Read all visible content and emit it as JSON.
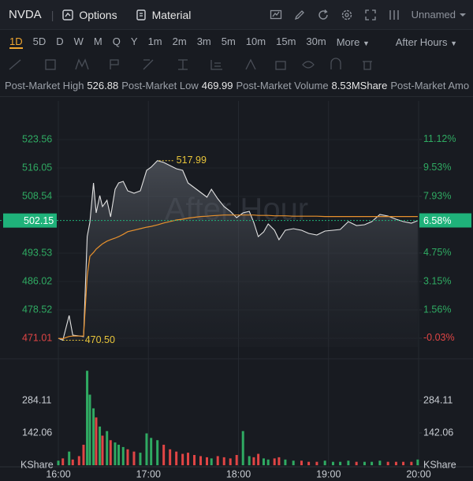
{
  "header": {
    "symbol": "NVDA",
    "tabs": [
      "Options",
      "Material"
    ],
    "layout_name": "Unnamed"
  },
  "timeframes": {
    "items": [
      "1D",
      "5D",
      "D",
      "W",
      "M",
      "Q",
      "Y",
      "1m",
      "2m",
      "3m",
      "5m",
      "10m",
      "15m",
      "30m"
    ],
    "selected": 0,
    "more": "More",
    "session": "After Hours"
  },
  "stats": [
    {
      "label": "Post-Market High",
      "value": "526.88"
    },
    {
      "label": "Post-Market Low",
      "value": "469.99"
    },
    {
      "label": "Post-Market Volume",
      "value": "8.53MShare"
    },
    {
      "label": "Post-Market Amo"
    }
  ],
  "chart_data": {
    "type": "line",
    "watermark": "After Hour",
    "x": [
      16.0,
      16.05,
      16.12,
      16.16,
      16.23,
      16.28,
      16.32,
      16.35,
      16.39,
      16.42,
      16.46,
      16.49,
      16.54,
      16.58,
      16.63,
      16.67,
      16.72,
      16.77,
      16.84,
      16.91,
      16.98,
      17.03,
      17.1,
      17.17,
      17.24,
      17.31,
      17.38,
      17.44,
      17.51,
      17.58,
      17.65,
      17.7,
      17.77,
      17.84,
      17.91,
      17.98,
      18.05,
      18.12,
      18.17,
      18.22,
      18.28,
      18.33,
      18.4,
      18.45,
      18.52,
      18.61,
      18.7,
      18.78,
      18.87,
      18.96,
      19.05,
      19.13,
      19.22,
      19.31,
      19.4,
      19.48,
      19.57,
      19.66,
      19.75,
      19.83,
      19.92,
      19.99
    ],
    "xlim": [
      16,
      20
    ],
    "xticks": [
      {
        "value": 16,
        "label": "16:00"
      },
      {
        "value": 17,
        "label": "17:00"
      },
      {
        "value": 18,
        "label": "18:00"
      },
      {
        "value": 19,
        "label": "19:00"
      },
      {
        "value": 20,
        "label": "20:00"
      }
    ],
    "ylim": [
      468.72,
      529.19
    ],
    "yticks": [
      523.56,
      516.05,
      508.54,
      493.53,
      486.02,
      478.52,
      471.01
    ],
    "y2lim": [
      -0.52,
      12.31
    ],
    "y2ticks": [
      {
        "value": 11.12,
        "label": "11.12%"
      },
      {
        "value": 9.53,
        "label": "9.53%"
      },
      {
        "value": 7.93,
        "label": "7.93%"
      },
      {
        "value": 4.75,
        "label": "4.75%"
      },
      {
        "value": 3.15,
        "label": "3.15%"
      },
      {
        "value": 1.56,
        "label": "1.56%"
      },
      {
        "value": -0.03,
        "label": "-0.03%"
      }
    ],
    "series": [
      {
        "color": "#e2e2e2",
        "values": [
          471.01,
          470.5,
          477.05,
          471.84,
          471.63,
          471.43,
          497.91,
          501.66,
          512.09,
          504.16,
          508.75,
          505.83,
          507.5,
          503.12,
          510.42,
          512.09,
          512.51,
          510.0,
          509.38,
          510.0,
          515.43,
          516.26,
          517.99,
          517.51,
          516.68,
          515.85,
          515.43,
          512.09,
          510.84,
          509.59,
          508.34,
          510.42,
          507.92,
          505.83,
          504.58,
          502.91,
          504.16,
          504.58,
          501.66,
          497.91,
          499.16,
          501.24,
          499.58,
          497.07,
          499.58,
          500.0,
          499.58,
          498.74,
          498.33,
          499.37,
          499.58,
          499.79,
          501.87,
          500.83,
          501.04,
          501.87,
          503.75,
          503.33,
          502.49,
          501.87,
          501.45,
          502.15
        ]
      },
      {
        "color": "#e8912d",
        "values": [
          471.0,
          470.9,
          471.5,
          471.6,
          471.6,
          471.6,
          487.5,
          492.7,
          493.7,
          494.6,
          495.4,
          496.0,
          496.7,
          497.1,
          497.5,
          497.9,
          498.5,
          499.2,
          499.6,
          500.0,
          500.4,
          500.6,
          501.0,
          501.5,
          501.9,
          502.3,
          502.5,
          502.8,
          503.0,
          503.2,
          503.3,
          503.4,
          503.5,
          503.6,
          503.6,
          503.6,
          503.6,
          503.6,
          503.6,
          503.5,
          503.5,
          503.5,
          503.4,
          503.4,
          503.4,
          503.3,
          503.3,
          503.3,
          503.3,
          503.2,
          503.2,
          503.2,
          503.2,
          503.2,
          503.2,
          503.2,
          503.2,
          503.2,
          503.2,
          503.2,
          503.2,
          503.2
        ]
      }
    ],
    "last": {
      "value": 502.15,
      "change": {
        "value": 6.58,
        "label": "6.58%"
      },
      "color": "#1fb27a"
    },
    "high": {
      "x": 17.1,
      "value": 517.99
    },
    "low": {
      "x": 16.05,
      "value": {
        "value": 470.5,
        "label": "470.50"
      }
    },
    "annotation_color": "#e7c43a",
    "up_color": "#2faa62",
    "down_color": "#e04545",
    "volume": {
      "unit": "KShare",
      "ylim": [
        0,
        433
      ],
      "yticks": [
        142.06,
        284.11
      ],
      "values": [
        20,
        30,
        60,
        25,
        40,
        90,
        415,
        310,
        250,
        210,
        170,
        130,
        150,
        110,
        100,
        90,
        80,
        70,
        60,
        55,
        140,
        120,
        110,
        90,
        70,
        60,
        50,
        55,
        45,
        40,
        35,
        30,
        40,
        35,
        30,
        45,
        150,
        40,
        35,
        50,
        30,
        25,
        30,
        35,
        25,
        20,
        20,
        15,
        15,
        20,
        15,
        15,
        20,
        15,
        15,
        15,
        20,
        15,
        15,
        15,
        15,
        25
      ]
    }
  }
}
